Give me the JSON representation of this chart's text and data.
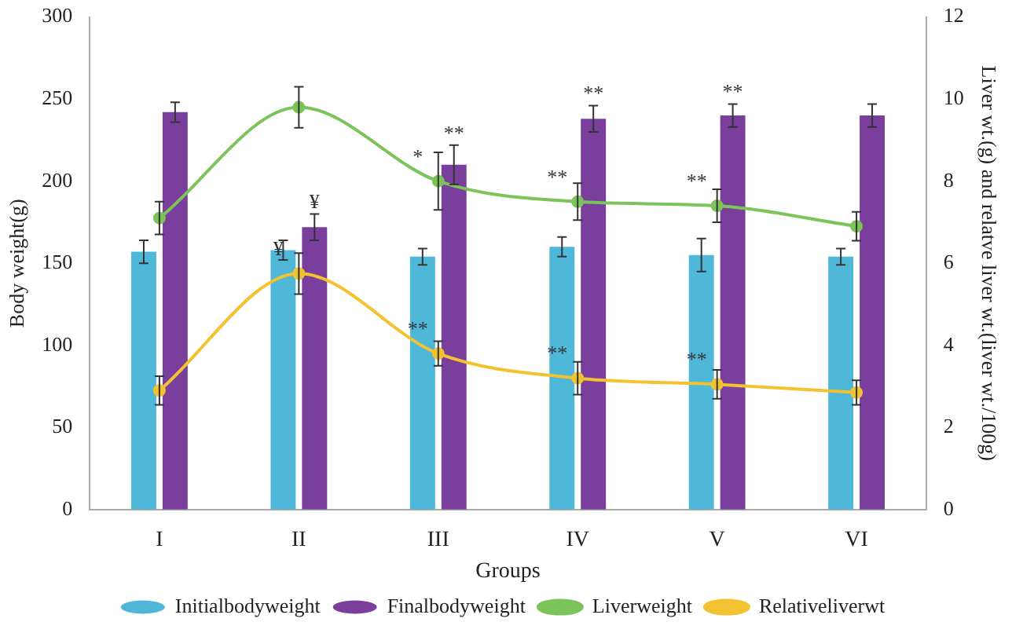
{
  "chart_data": {
    "type": "bar",
    "xlabel": "Groups",
    "ylabel": "Body weight(g)",
    "y2label": "Liver wt.(g) and relatve liver wt.(liver wt./100g)",
    "categories": [
      "I",
      "II",
      "III",
      "IV",
      "V",
      "VI"
    ],
    "series": [
      {
        "name": "Initialbodyweight",
        "color": "#4fb8d8",
        "values": [
          157,
          158,
          154,
          160,
          155,
          154
        ],
        "errors": [
          7,
          6,
          5,
          6,
          10,
          5
        ]
      },
      {
        "name": "Finalbodyweight",
        "color": "#7a3f9d",
        "values": [
          242,
          172,
          210,
          238,
          240,
          240
        ],
        "errors": [
          6,
          8,
          12,
          8,
          7,
          7
        ]
      },
      {
        "name": "Liverweight",
        "type": "line",
        "axis": "y2",
        "color": "#7cc35a",
        "values": [
          7.1,
          9.8,
          8.0,
          7.5,
          7.4,
          6.9
        ],
        "errors": [
          0.4,
          0.5,
          0.7,
          0.45,
          0.4,
          0.35
        ]
      },
      {
        "name": "Relativeliverwt",
        "type": "line",
        "axis": "y2",
        "color": "#f2c230",
        "values": [
          2.9,
          5.75,
          3.8,
          3.2,
          3.05,
          2.85
        ],
        "errors": [
          0.35,
          0.5,
          0.3,
          0.4,
          0.35,
          0.3
        ]
      }
    ],
    "ylim": [
      0,
      300
    ],
    "yticks": [
      0,
      50,
      100,
      150,
      200,
      250,
      300
    ],
    "y2lim": [
      0,
      12
    ],
    "y2ticks": [
      0,
      2,
      4,
      6,
      8,
      10,
      12
    ],
    "annotations": [
      {
        "text": "¥",
        "x": "II",
        "y": 172
      },
      {
        "text": "¥",
        "x": "II",
        "y": 143.75
      },
      {
        "text": "*",
        "x": "III",
        "y": 200
      },
      {
        "text": "**",
        "x": "III",
        "y": 210
      },
      {
        "text": "**",
        "x": "III",
        "y": 95
      },
      {
        "text": "**",
        "x": "IV",
        "y": 238
      },
      {
        "text": "**",
        "x": "IV",
        "y": 187.5
      },
      {
        "text": "**",
        "x": "IV",
        "y": 80
      },
      {
        "text": "**",
        "x": "V",
        "y": 240
      },
      {
        "text": "**",
        "x": "V",
        "y": 185
      },
      {
        "text": "**",
        "x": "V",
        "y": 76.25
      }
    ],
    "legend": "bottom",
    "marker": "circle",
    "line_style": "solid",
    "grid": false
  }
}
